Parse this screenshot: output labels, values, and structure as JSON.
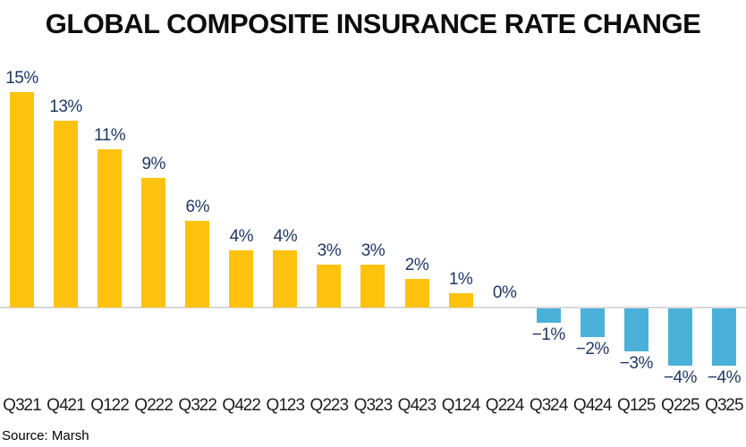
{
  "title": "GLOBAL COMPOSITE INSURANCE RATE CHANGE",
  "source": "Source: Marsh",
  "colors": {
    "positive_bar": "#FFC20E",
    "negative_bar": "#4BB0D8",
    "value_label": "#1F3864",
    "axis_line": "#D9D9D9",
    "tick_label": "#1F1F1F",
    "title_text": "#0D0D0D",
    "background": "#FFFFFF"
  },
  "chart_data": {
    "type": "bar",
    "title": "GLOBAL COMPOSITE INSURANCE RATE CHANGE",
    "xlabel": "",
    "ylabel": "",
    "categories": [
      "Q3 21",
      "Q4 21",
      "Q1 22",
      "Q2 22",
      "Q3 22",
      "Q4 22",
      "Q1 23",
      "Q2 23",
      "Q3 23",
      "Q4 23",
      "Q1 24",
      "Q2 24",
      "Q3 24",
      "Q4 24",
      "Q1 25",
      "Q2 25",
      "Q3 25"
    ],
    "values": [
      15,
      13,
      11,
      9,
      6,
      4,
      4,
      3,
      3,
      2,
      1,
      0,
      -1,
      -2,
      -3,
      -4,
      -4
    ],
    "value_labels": [
      "15%",
      "13%",
      "11%",
      "9%",
      "6%",
      "4%",
      "4%",
      "3%",
      "3%",
      "2%",
      "1%",
      "0%",
      "−1%",
      "−2%",
      "−3%",
      "−4%",
      "−4%"
    ],
    "unit": "percent",
    "ylim": [
      -5,
      16
    ],
    "grid": false,
    "legend": null,
    "baseline": 0,
    "annotation": "Source: Marsh",
    "color_rule": "positive values yellow, negative values blue"
  }
}
